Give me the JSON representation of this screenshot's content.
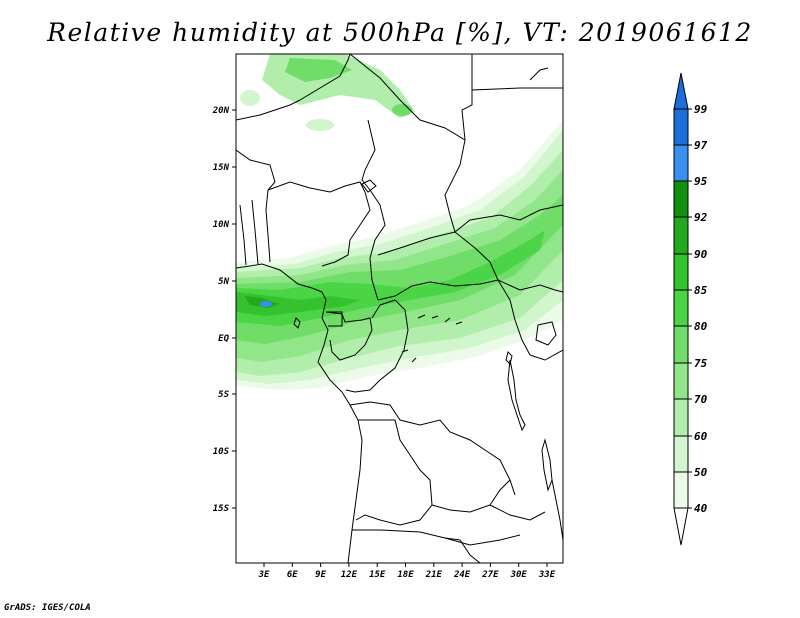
{
  "title": "Relative humidity at 500hPa [%], VT: 2019061612",
  "credit": "GrADS: IGES/COLA",
  "map": {
    "lat_ticks": [
      "20N",
      "15N",
      "10N",
      "5N",
      "EQ",
      "5S",
      "10S",
      "15S"
    ],
    "lon_ticks": [
      "3E",
      "6E",
      "9E",
      "12E",
      "15E",
      "18E",
      "21E",
      "24E",
      "27E",
      "30E",
      "33E"
    ]
  },
  "colorbar": {
    "levels": [
      "99",
      "97",
      "95",
      "92",
      "90",
      "85",
      "80",
      "75",
      "70",
      "60",
      "50",
      "40"
    ],
    "colors": {
      "97-99": "#1a6fd8",
      "95-97": "#3a90ee",
      "92-95": "#12900f",
      "90-92": "#23a91f",
      "85-90": "#34c22f",
      "80-85": "#4bd445",
      "75-80": "#6fdd67",
      "70-75": "#91e68a",
      "60-70": "#b2eeab",
      "50-60": "#d1f5cc",
      "40-50": "#ecfbe9",
      "below-40": "#ffffff"
    }
  }
}
